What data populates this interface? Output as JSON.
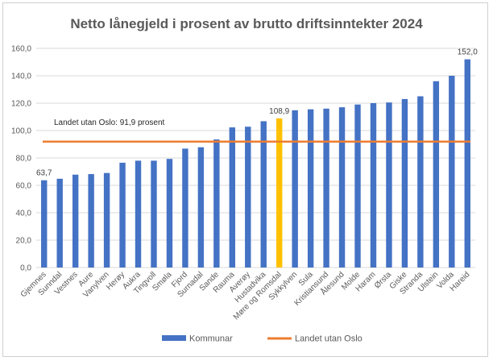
{
  "chart_data": {
    "type": "bar",
    "title": "Netto lånegjeld i prosent av brutto driftsinntekter 2024",
    "categories": [
      "Gjemnes",
      "Sunndal",
      "Vestnes",
      "Aure",
      "Vanylven",
      "Herøy",
      "Aukra",
      "Tingvoll",
      "Smøla",
      "Fjord",
      "Surnadal",
      "Sande",
      "Rauma",
      "Averøy",
      "Hustadvika",
      "Møre og Romsdal",
      "Sykkylven",
      "Sula",
      "Kristiansund",
      "Ålesund",
      "Molde",
      "Haram",
      "Ørsta",
      "Giske",
      "Stranda",
      "Ulstein",
      "Volda",
      "Hareid"
    ],
    "series": [
      {
        "name": "Kommunar",
        "values": [
          63.7,
          64.8,
          67.8,
          68.2,
          69.0,
          76.5,
          78.0,
          78.0,
          79.3,
          86.8,
          87.8,
          93.5,
          102.3,
          102.8,
          106.8,
          108.9,
          114.8,
          115.5,
          116.0,
          117.0,
          119.0,
          120.0,
          120.5,
          123.0,
          125.0,
          136.0,
          140.0,
          152.0
        ],
        "color": "#4472c4",
        "highlight_index": 15,
        "highlight_color": "#ffc000"
      }
    ],
    "reference_line": {
      "name": "Landet utan Oslo",
      "value": 91.9,
      "label": "Landet utan Oslo: 91,9 prosent",
      "color": "#ed7d31"
    },
    "data_labels": [
      {
        "index": 0,
        "text": "63,7"
      },
      {
        "index": 15,
        "text": "108,9"
      },
      {
        "index": 27,
        "text": "152,0"
      }
    ],
    "yticks": [
      "0,0",
      "20,0",
      "40,0",
      "60,0",
      "80,0",
      "100,0",
      "120,0",
      "140,0",
      "160,0"
    ],
    "ylim": [
      0,
      160
    ],
    "ystep": 20,
    "grid": true,
    "legend_position": "bottom",
    "legend": [
      {
        "label": "Kommunar",
        "kind": "bar",
        "color": "#4472c4"
      },
      {
        "label": "Landet utan Oslo",
        "kind": "line",
        "color": "#ed7d31"
      }
    ]
  }
}
